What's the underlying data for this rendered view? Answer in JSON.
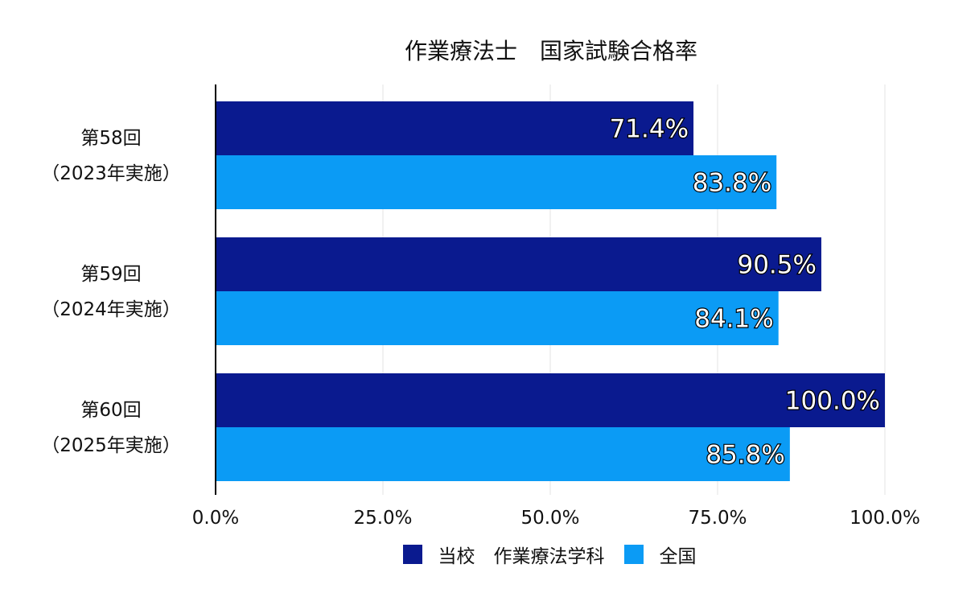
{
  "chart_data": {
    "type": "bar",
    "orientation": "horizontal",
    "title": "作業療法士　国家試験合格率",
    "categories": [
      [
        "第58回",
        "（2023年実施）"
      ],
      [
        "第59回",
        "（2024年実施）"
      ],
      [
        "第60回",
        "（2025年実施）"
      ]
    ],
    "series": [
      {
        "name": "当校　作業療法学科",
        "color": "#0a1a8f",
        "values": [
          71.4,
          90.5,
          100.0
        ]
      },
      {
        "name": "全国",
        "color": "#0b9bf5",
        "values": [
          83.8,
          84.1,
          85.8
        ]
      }
    ],
    "xlim": [
      0,
      100
    ],
    "xticks": [
      0,
      25,
      50,
      75,
      100
    ],
    "xtick_labels": [
      "0.0%",
      "25.0%",
      "50.0%",
      "75.0%",
      "100.0%"
    ],
    "value_labels": [
      [
        "71.4%",
        "90.5%",
        "100.0%"
      ],
      [
        "83.8%",
        "84.1%",
        "85.8%"
      ]
    ],
    "grid": true,
    "legend_position": "bottom"
  }
}
